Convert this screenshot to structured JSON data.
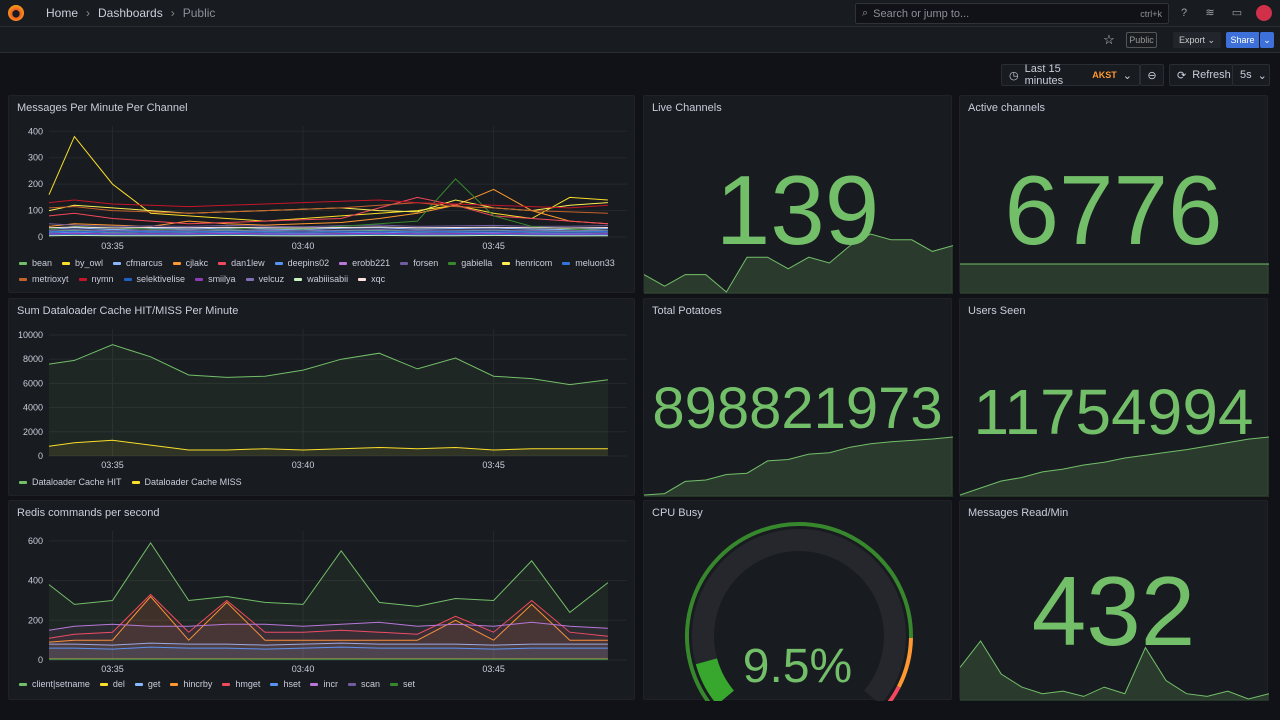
{
  "topbar": {
    "breadcrumbs": [
      "Home",
      "Dashboards",
      "Public"
    ],
    "search_placeholder": "Search or jump to...",
    "search_shortcut": "ctrl+k",
    "icons": [
      "help-icon",
      "rss-icon",
      "monitor-icon"
    ]
  },
  "toolbar": {
    "public_badge": "Public",
    "export_label": "Export",
    "share_label": "Share",
    "time_range": "Last 15 minutes",
    "timezone": "AKST",
    "refresh_label": "Refresh",
    "refresh_interval": "5s"
  },
  "colors": {
    "accent": "#3d71d9",
    "stat": "#73bf69",
    "tz": "#ff9830"
  },
  "chart_data": [
    {
      "id": "mpm",
      "title": "Messages Per Minute Per Channel",
      "type": "line",
      "xrange": [
        "03:33:20",
        "03:48:30"
      ],
      "ylim": [
        0,
        420
      ],
      "yticks": [
        0,
        100,
        200,
        300,
        400
      ],
      "xticks": [
        "03:35",
        "03:40",
        "03:45"
      ],
      "x": [
        "03:33",
        "03:34",
        "03:35",
        "03:36",
        "03:37",
        "03:38",
        "03:39",
        "03:40",
        "03:41",
        "03:42",
        "03:43",
        "03:44",
        "03:45",
        "03:46",
        "03:47",
        "03:48"
      ],
      "series": [
        {
          "name": "bean",
          "color": "#73bf69",
          "values": [
            20,
            25,
            18,
            22,
            20,
            24,
            21,
            19,
            23,
            25,
            20,
            22,
            24,
            20,
            21,
            23
          ]
        },
        {
          "name": "by_owl",
          "color": "#fade2a",
          "values": [
            160,
            380,
            200,
            90,
            80,
            70,
            60,
            70,
            80,
            90,
            100,
            120,
            90,
            70,
            150,
            140
          ]
        },
        {
          "name": "cfmarcus",
          "color": "#8ab8ff",
          "values": [
            30,
            35,
            28,
            32,
            30,
            34,
            30,
            28,
            33,
            35,
            30,
            32,
            34,
            30,
            28,
            32
          ]
        },
        {
          "name": "cjlakc",
          "color": "#ff9830",
          "values": [
            40,
            50,
            45,
            40,
            60,
            50,
            45,
            50,
            55,
            70,
            90,
            120,
            180,
            100,
            60,
            50
          ]
        },
        {
          "name": "dan1lew",
          "color": "#f2495c",
          "values": [
            80,
            90,
            70,
            60,
            50,
            55,
            60,
            65,
            70,
            110,
            150,
            120,
            80,
            70,
            60,
            50
          ]
        },
        {
          "name": "deepins02",
          "color": "#5794f2",
          "values": [
            15,
            18,
            14,
            16,
            15,
            17,
            15,
            14,
            16,
            18,
            15,
            16,
            17,
            15,
            14,
            16
          ]
        },
        {
          "name": "erobb221",
          "color": "#b877d9",
          "values": [
            10,
            12,
            10,
            11,
            10,
            12,
            10,
            9,
            11,
            12,
            10,
            11,
            12,
            10,
            9,
            11
          ]
        },
        {
          "name": "forsen",
          "color": "#705da0",
          "values": [
            50,
            45,
            40,
            42,
            40,
            44,
            41,
            39,
            43,
            45,
            40,
            42,
            44,
            40,
            41,
            43
          ]
        },
        {
          "name": "gabiella",
          "color": "#37872d",
          "values": [
            30,
            40,
            35,
            30,
            25,
            30,
            35,
            30,
            40,
            50,
            60,
            220,
            80,
            40,
            30,
            25
          ]
        },
        {
          "name": "henricom",
          "color": "#ffee52",
          "values": [
            100,
            120,
            110,
            100,
            90,
            95,
            100,
            105,
            110,
            100,
            95,
            140,
            110,
            100,
            120,
            130
          ]
        },
        {
          "name": "meluon33",
          "color": "#3274d9",
          "values": [
            20,
            22,
            20,
            21,
            20,
            22,
            20,
            19,
            21,
            22,
            20,
            21,
            22,
            20,
            19,
            21
          ]
        },
        {
          "name": "metrioxyt",
          "color": "#c4622d",
          "values": [
            110,
            115,
            100,
            95,
            90,
            95,
            100,
            105,
            110,
            120,
            130,
            115,
            110,
            100,
            95,
            90
          ]
        },
        {
          "name": "nymn",
          "color": "#c4162a",
          "values": [
            130,
            140,
            125,
            120,
            115,
            120,
            125,
            130,
            135,
            140,
            130,
            125,
            120,
            115,
            110,
            120
          ]
        },
        {
          "name": "selektivelise",
          "color": "#1f60c4",
          "values": [
            8,
            9,
            8,
            8,
            8,
            9,
            8,
            7,
            8,
            9,
            8,
            8,
            9,
            8,
            7,
            8
          ]
        },
        {
          "name": "smiilya",
          "color": "#8f3bb8",
          "values": [
            12,
            14,
            12,
            13,
            12,
            14,
            12,
            11,
            13,
            14,
            12,
            13,
            14,
            12,
            11,
            13
          ]
        },
        {
          "name": "velcuz",
          "color": "#806eb7",
          "values": [
            25,
            28,
            24,
            26,
            25,
            27,
            25,
            24,
            26,
            28,
            25,
            26,
            27,
            25,
            24,
            26
          ]
        },
        {
          "name": "wabiiisabii",
          "color": "#c8f2c2",
          "values": [
            5,
            6,
            5,
            5,
            5,
            6,
            5,
            4,
            5,
            6,
            5,
            5,
            6,
            5,
            4,
            5
          ]
        },
        {
          "name": "xqc",
          "color": "#fce2de",
          "values": [
            35,
            38,
            34,
            36,
            35,
            37,
            35,
            34,
            36,
            38,
            35,
            36,
            37,
            35,
            34,
            36
          ]
        }
      ]
    },
    {
      "id": "dl",
      "title": "Sum Dataloader Cache HIT/MISS Per Minute",
      "type": "line",
      "fill": true,
      "xrange": [
        "03:33:20",
        "03:48:30"
      ],
      "ylim": [
        0,
        10500
      ],
      "yticks": [
        0,
        2000,
        4000,
        6000,
        8000,
        10000
      ],
      "xticks": [
        "03:35",
        "03:40",
        "03:45"
      ],
      "x": [
        "03:33",
        "03:34",
        "03:35",
        "03:36",
        "03:37",
        "03:38",
        "03:39",
        "03:40",
        "03:41",
        "03:42",
        "03:43",
        "03:44",
        "03:45",
        "03:46",
        "03:47",
        "03:48"
      ],
      "series": [
        {
          "name": "Dataloader Cache HIT",
          "color": "#73bf69",
          "values": [
            7600,
            7900,
            9200,
            8200,
            6700,
            6500,
            6600,
            7100,
            8000,
            8500,
            7200,
            8100,
            6600,
            6400,
            5900,
            6300
          ]
        },
        {
          "name": "Dataloader Cache MISS",
          "color": "#fade2a",
          "values": [
            800,
            1100,
            1300,
            900,
            500,
            500,
            600,
            500,
            600,
            700,
            600,
            700,
            500,
            600,
            600,
            600
          ]
        }
      ]
    },
    {
      "id": "redis",
      "title": "Redis commands per second",
      "type": "line",
      "fill": true,
      "xrange": [
        "03:33:20",
        "03:48:30"
      ],
      "ylim": [
        0,
        650
      ],
      "yticks": [
        0,
        200,
        400,
        600
      ],
      "xticks": [
        "03:35",
        "03:40",
        "03:45"
      ],
      "x": [
        "03:33",
        "03:34",
        "03:35",
        "03:36",
        "03:37",
        "03:38",
        "03:39",
        "03:40",
        "03:41",
        "03:42",
        "03:43",
        "03:44",
        "03:45",
        "03:46",
        "03:47",
        "03:48"
      ],
      "series": [
        {
          "name": "client|setname",
          "color": "#73bf69",
          "values": [
            380,
            280,
            300,
            590,
            300,
            320,
            290,
            280,
            550,
            290,
            270,
            310,
            300,
            500,
            240,
            390
          ]
        },
        {
          "name": "del",
          "color": "#fade2a",
          "values": [
            5,
            5,
            5,
            5,
            5,
            5,
            5,
            5,
            5,
            5,
            5,
            5,
            5,
            5,
            5,
            5
          ]
        },
        {
          "name": "get",
          "color": "#8ab8ff",
          "values": [
            80,
            80,
            75,
            85,
            80,
            80,
            75,
            80,
            85,
            80,
            80,
            80,
            75,
            80,
            80,
            80
          ]
        },
        {
          "name": "hincrby",
          "color": "#ff9830",
          "values": [
            90,
            100,
            100,
            320,
            100,
            290,
            100,
            100,
            100,
            100,
            100,
            200,
            100,
            280,
            100,
            100
          ]
        },
        {
          "name": "hmget",
          "color": "#f2495c",
          "values": [
            110,
            130,
            140,
            330,
            140,
            300,
            140,
            140,
            150,
            140,
            130,
            220,
            140,
            300,
            140,
            120
          ]
        },
        {
          "name": "hset",
          "color": "#5794f2",
          "values": [
            60,
            60,
            55,
            65,
            60,
            60,
            55,
            60,
            65,
            60,
            60,
            60,
            55,
            60,
            60,
            60
          ]
        },
        {
          "name": "incr",
          "color": "#b877d9",
          "values": [
            150,
            170,
            180,
            170,
            170,
            180,
            180,
            170,
            180,
            190,
            170,
            180,
            170,
            190,
            170,
            160
          ]
        },
        {
          "name": "scan",
          "color": "#705da0",
          "values": [
            2,
            2,
            2,
            2,
            2,
            2,
            2,
            2,
            2,
            2,
            2,
            2,
            2,
            2,
            2,
            2
          ]
        },
        {
          "name": "set",
          "color": "#37872d",
          "values": [
            3,
            3,
            3,
            3,
            3,
            3,
            3,
            3,
            3,
            3,
            3,
            3,
            3,
            3,
            3,
            3
          ]
        }
      ]
    }
  ],
  "stats": [
    {
      "title": "Live Channels",
      "value": "139",
      "spark": [
        133,
        131,
        133,
        133,
        130,
        136,
        136,
        134,
        136,
        135,
        138,
        140,
        139,
        139,
        137,
        138
      ]
    },
    {
      "title": "Active channels",
      "value": "6776",
      "spark": [
        6776,
        6776,
        6776,
        6776,
        6776,
        6776,
        6776,
        6776,
        6776,
        6776,
        6776,
        6776,
        6776,
        6776,
        6776,
        6776
      ]
    },
    {
      "title": "Total Potatoes",
      "value": "898821973",
      "spark": [
        10,
        12,
        30,
        32,
        40,
        42,
        60,
        62,
        70,
        72,
        80,
        85,
        88,
        90,
        92,
        95
      ]
    },
    {
      "title": "Users Seen",
      "value": "11754994",
      "spark": [
        5,
        15,
        25,
        30,
        38,
        42,
        48,
        52,
        58,
        62,
        66,
        70,
        75,
        80,
        85,
        88
      ]
    },
    {
      "title": "Messages Read/Min",
      "value": "432",
      "spark": [
        30,
        50,
        25,
        15,
        10,
        12,
        8,
        15,
        10,
        45,
        20,
        10,
        8,
        12,
        6,
        10
      ]
    }
  ],
  "gauge": {
    "title": "CPU Busy",
    "value": 9.5,
    "display": "9.5%",
    "min": 0,
    "max": 100,
    "thresholds": [
      {
        "value": 0,
        "color": "#37872d"
      },
      {
        "value": 85,
        "color": "#ff9830"
      },
      {
        "value": 95,
        "color": "#f2495c"
      }
    ]
  }
}
